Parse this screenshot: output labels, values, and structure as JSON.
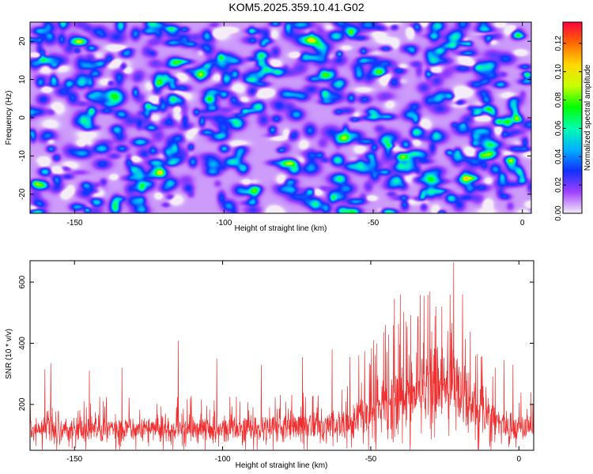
{
  "title": "KOM5.2025.359.10.41.G02",
  "chart_data": [
    {
      "type": "heatmap",
      "description": "Frequency vs height spectrogram, normalized spectral amplitude",
      "xlabel": "Height of straight line (km)",
      "ylabel": "Frequency (Hz)",
      "xlim": [
        -165,
        3
      ],
      "ylim": [
        -25,
        25
      ],
      "x_ticks": [
        -150,
        -100,
        -50,
        0
      ],
      "y_ticks": [
        -20,
        -10,
        0,
        10,
        20
      ],
      "x_tick_labels": [
        "-150",
        "-100",
        "-50",
        "0"
      ],
      "y_tick_labels": [
        "-20",
        "-10",
        "0",
        "10",
        "20"
      ],
      "colorbar": {
        "label": "Normalized spectral amplitude",
        "range": [
          0,
          0.135
        ],
        "ticks": [
          0,
          0.02,
          0.04,
          0.06,
          0.08,
          0.1,
          0.12
        ],
        "tick_labels": [
          "0.00",
          "0.02",
          "0.04",
          "0.06",
          "0.08",
          "0.10",
          "0.12"
        ],
        "stops": [
          "#f4ecf7",
          "#a040ff",
          "#1030ff",
          "#00b0ff",
          "#00ffb0",
          "#00ff00",
          "#c8ff00",
          "#ffd800",
          "#ff6a00",
          "#ff0040"
        ]
      },
      "background_amplitude": 0.02,
      "blob_count": 650,
      "hotspots": [
        {
          "x": -148,
          "y": 20,
          "amp": 0.07
        },
        {
          "x": -143,
          "y": -22,
          "amp": 0.07
        },
        {
          "x": -136,
          "y": -3,
          "amp": 0.06
        },
        {
          "x": -125,
          "y": 3,
          "amp": 0.07
        },
        {
          "x": -122,
          "y": 9,
          "amp": 0.08
        },
        {
          "x": -118,
          "y": -17,
          "amp": 0.06
        },
        {
          "x": -105,
          "y": 5,
          "amp": 0.08
        },
        {
          "x": -100,
          "y": -8,
          "amp": 0.06
        },
        {
          "x": -90,
          "y": -19,
          "amp": 0.06
        },
        {
          "x": -82,
          "y": 12,
          "amp": 0.07
        },
        {
          "x": -80,
          "y": -12,
          "amp": 0.06
        },
        {
          "x": -73,
          "y": 16,
          "amp": 0.06
        },
        {
          "x": -66,
          "y": 11,
          "amp": 0.07
        },
        {
          "x": -62,
          "y": -11,
          "amp": 0.08
        },
        {
          "x": -60,
          "y": -5,
          "amp": 0.06
        },
        {
          "x": -48,
          "y": 12,
          "amp": 0.115
        },
        {
          "x": -46,
          "y": -6,
          "amp": 0.07
        },
        {
          "x": -40,
          "y": -10,
          "amp": 0.09
        },
        {
          "x": -30,
          "y": 15,
          "amp": 0.06
        },
        {
          "x": -24,
          "y": -21,
          "amp": 0.07
        },
        {
          "x": -15,
          "y": 2,
          "amp": 0.07
        },
        {
          "x": -12,
          "y": 2.5,
          "amp": 0.08
        },
        {
          "x": -8,
          "y": -1,
          "amp": 0.09
        },
        {
          "x": -5,
          "y": -1,
          "amp": 0.1
        },
        {
          "x": -4,
          "y": -11,
          "amp": 0.1
        },
        {
          "x": -2,
          "y": 0,
          "amp": 0.085
        },
        {
          "x": -2,
          "y": 22,
          "amp": 0.06
        },
        {
          "x": -160,
          "y": -14,
          "amp": 0.07
        },
        {
          "x": -160,
          "y": 15,
          "amp": 0.06
        },
        {
          "x": -152,
          "y": 9,
          "amp": 0.06
        }
      ]
    },
    {
      "type": "line",
      "description": "Signal-to-noise ratio vs height",
      "xlabel": "Height of straight line (km)",
      "ylabel": "SNR (10 * v/v)",
      "color": "#f03030",
      "xlim": [
        -165,
        5
      ],
      "ylim": [
        50,
        670
      ],
      "x_ticks": [
        -150,
        -100,
        -50,
        0
      ],
      "y_ticks": [
        200,
        400,
        600
      ],
      "x_tick_labels": [
        "-150",
        "-100",
        "-50",
        "0"
      ],
      "y_tick_labels": [
        "200",
        "400",
        "600"
      ],
      "sample_count": 1700,
      "envelope": {
        "x": [
          -165,
          -90,
          -75,
          -60,
          -55,
          -50,
          -45,
          -40,
          -35,
          -30,
          -25,
          -20,
          -15,
          -10,
          -5,
          0,
          5
        ],
        "mean": [
          120,
          120,
          130,
          135,
          150,
          160,
          190,
          215,
          245,
          260,
          265,
          250,
          180,
          145,
          135,
          130,
          125
        ],
        "spread": [
          45,
          45,
          50,
          55,
          70,
          95,
          110,
          120,
          130,
          140,
          140,
          130,
          100,
          65,
          55,
          50,
          50
        ]
      },
      "peaks": [
        {
          "x": -160,
          "y": 315
        },
        {
          "x": -158,
          "y": 335
        },
        {
          "x": -145,
          "y": 310
        },
        {
          "x": -134,
          "y": 320
        },
        {
          "x": -115,
          "y": 408
        },
        {
          "x": -102,
          "y": 350
        },
        {
          "x": -87,
          "y": 330
        },
        {
          "x": -73,
          "y": 355
        },
        {
          "x": -63,
          "y": 380
        },
        {
          "x": -57,
          "y": 355
        },
        {
          "x": -54,
          "y": 360
        },
        {
          "x": -52,
          "y": 375
        },
        {
          "x": -49,
          "y": 410
        },
        {
          "x": -45,
          "y": 460
        },
        {
          "x": -42,
          "y": 545
        },
        {
          "x": -40,
          "y": 560
        },
        {
          "x": -38,
          "y": 470
        },
        {
          "x": -32,
          "y": 555
        },
        {
          "x": -30,
          "y": 570
        },
        {
          "x": -28,
          "y": 520
        },
        {
          "x": -26,
          "y": 520
        },
        {
          "x": -24,
          "y": 440
        },
        {
          "x": -22,
          "y": 665
        },
        {
          "x": -19,
          "y": 560
        },
        {
          "x": -14,
          "y": 365
        },
        {
          "x": -8,
          "y": 320
        },
        {
          "x": -5,
          "y": 345
        },
        {
          "x": -2,
          "y": 330
        }
      ]
    }
  ]
}
